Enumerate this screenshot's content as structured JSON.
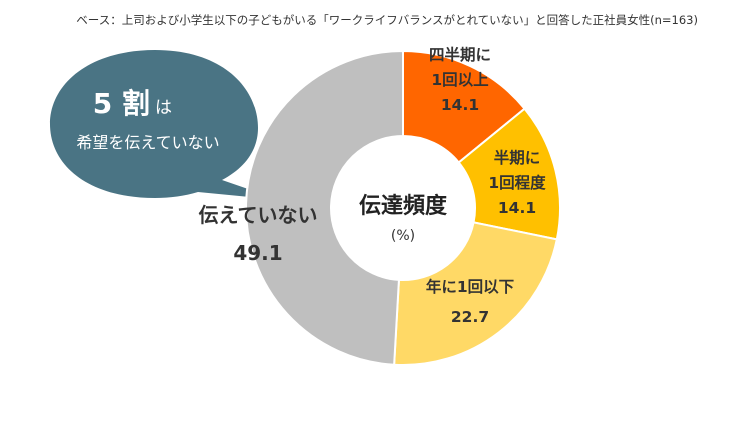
{
  "base_note": "ベース：上司および小学生以下の子どもがいる「ワークライフバランスがとれていない」と回答した正社員女性(n=163)",
  "bubble": {
    "big": "5 割",
    "particle": "は",
    "line2": "希望を伝えていない",
    "color": "#4a7484"
  },
  "center": {
    "title": "伝達頻度",
    "unit": "(%)"
  },
  "chart_data": {
    "type": "pie",
    "subtype": "donut",
    "unit": "%",
    "slices": [
      {
        "label_lines": [
          "四半期に",
          "1回以上"
        ],
        "value": 14.1,
        "value_text": "14.1",
        "color": "#ff6600"
      },
      {
        "label_lines": [
          "半期に",
          "1回程度"
        ],
        "value": 14.1,
        "value_text": "14.1",
        "color": "#ffc000"
      },
      {
        "label_lines": [
          "年に1回以下"
        ],
        "value": 22.7,
        "value_text": "22.7",
        "color": "#ffd966"
      },
      {
        "label_lines": [
          "伝えていない"
        ],
        "value": 49.1,
        "value_text": "49.1",
        "color": "#bfbfbf"
      }
    ]
  }
}
